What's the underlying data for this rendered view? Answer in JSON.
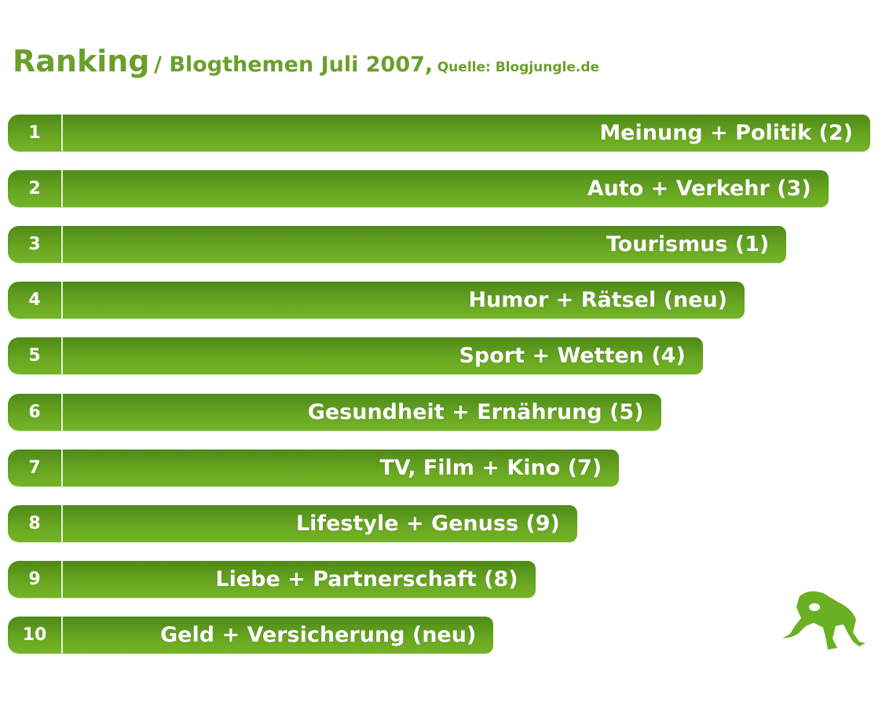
{
  "title": {
    "main": "Ranking",
    "sub": "/ Blogthemen Juli 2007,",
    "source": "Quelle: Blogjungle.de"
  },
  "chart_data": {
    "type": "bar",
    "orientation": "horizontal",
    "title": "Ranking / Blogthemen Juli 2007, Quelle: Blogjungle.de",
    "bars": [
      {
        "rank": "1",
        "label": "Meinung + Politik (2)"
      },
      {
        "rank": "2",
        "label": "Auto + Verkehr (3)"
      },
      {
        "rank": "3",
        "label": "Tourismus (1)"
      },
      {
        "rank": "4",
        "label": "Humor + Rätsel (neu)"
      },
      {
        "rank": "5",
        "label": "Sport + Wetten (4)"
      },
      {
        "rank": "6",
        "label": "Gesundheit + Ernährung (5)"
      },
      {
        "rank": "7",
        "label": "TV, Film + Kino (7)"
      },
      {
        "rank": "8",
        "label": "Lifestyle + Genuss (9)"
      },
      {
        "rank": "9",
        "label": "Liebe + Partnerschaft (8)"
      },
      {
        "rank": "10",
        "label": "Geld + Versicherung (neu)"
      }
    ],
    "bar_color": "#5f9c1e"
  },
  "logo": {
    "icon": "frog-icon",
    "color": "#6ab023"
  }
}
